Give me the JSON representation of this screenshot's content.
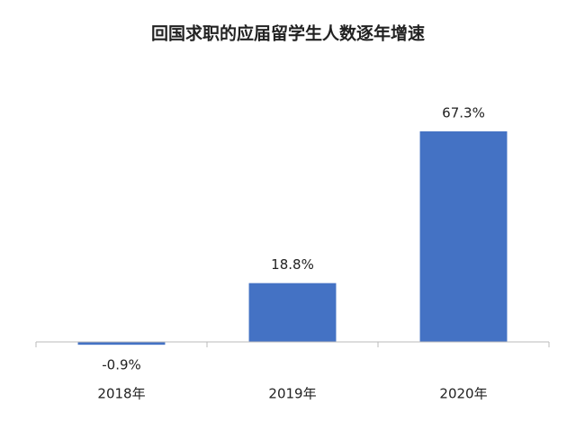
{
  "chart_data": {
    "type": "bar",
    "title": "回国求职的应届留学生人数逐年增速",
    "categories": [
      "2018年",
      "2019年",
      "2020年"
    ],
    "values": [
      -0.9,
      18.8,
      67.3
    ],
    "value_labels": [
      "-0.9%",
      "18.8%",
      "67.3%"
    ],
    "color": "#4472c4",
    "ylim": [
      -10,
      70
    ]
  }
}
